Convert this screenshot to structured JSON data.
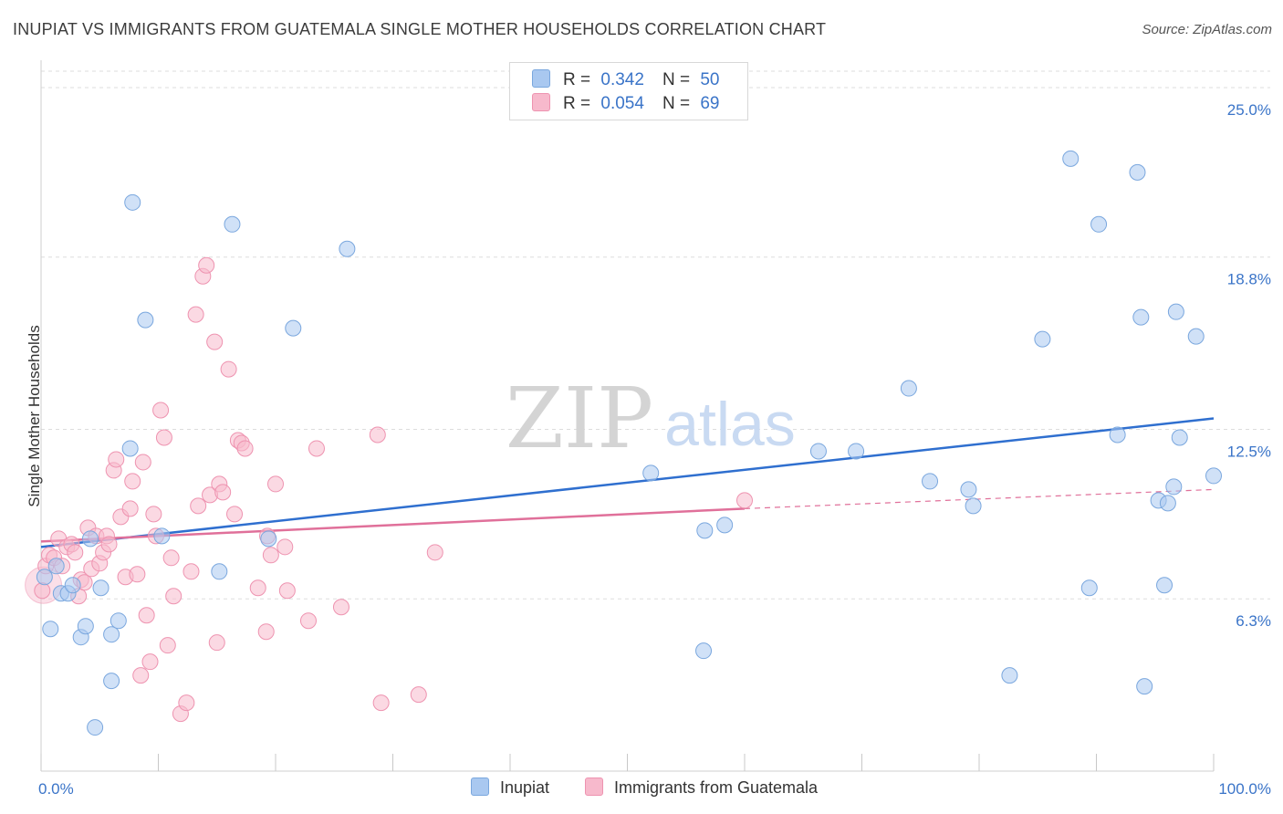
{
  "header": {
    "title": "INUPIAT VS IMMIGRANTS FROM GUATEMALA SINGLE MOTHER HOUSEHOLDS CORRELATION CHART",
    "source": "Source: ZipAtlas.com"
  },
  "watermark": {
    "zip": "ZIP",
    "atlas": "atlas"
  },
  "legend": {
    "rows": [
      {
        "r_label": "R =",
        "r_value": "0.342",
        "n_label": "N =",
        "n_value": "50",
        "color": "#a9c8f0"
      },
      {
        "r_label": "R =",
        "r_value": "0.054",
        "n_label": "N =",
        "n_value": "69",
        "color": "#f7b9cc"
      }
    ]
  },
  "bottom_legend": {
    "series_a": "Inupiat",
    "series_b": "Immigrants from Guatemala"
  },
  "colors": {
    "blue_fill": "#a9c8f0",
    "blue_stroke": "#7aa7de",
    "blue_line": "#2f6fcf",
    "pink_fill": "#f7b9cc",
    "pink_stroke": "#ee93b0",
    "pink_line": "#e0709a",
    "tick_text": "#3a74c8",
    "grid": "#dddddd"
  },
  "chart_data": {
    "type": "scatter",
    "xlabel": "",
    "ylabel": "Single Mother Households",
    "xlim": [
      0,
      100
    ],
    "ylim": [
      0,
      25.6
    ],
    "x_tick_labels": [
      "0.0%",
      "100.0%"
    ],
    "y_ticks": [
      {
        "value": 6.3,
        "label": "6.3%"
      },
      {
        "value": 12.5,
        "label": "12.5%"
      },
      {
        "value": 18.8,
        "label": "18.8%"
      },
      {
        "value": 25.0,
        "label": "25.0%"
      }
    ],
    "grid": true,
    "series": [
      {
        "name": "Inupiat",
        "color": "#a9c8f0",
        "trend": {
          "x0": 0,
          "y0": 8.2,
          "x1": 100,
          "y1": 12.9
        },
        "points": [
          [
            0.3,
            7.1
          ],
          [
            0.8,
            5.2
          ],
          [
            1.3,
            7.5
          ],
          [
            1.7,
            6.5
          ],
          [
            2.3,
            6.5
          ],
          [
            2.7,
            6.8
          ],
          [
            3.4,
            4.9
          ],
          [
            3.8,
            5.3
          ],
          [
            4.2,
            8.5
          ],
          [
            4.6,
            1.6
          ],
          [
            5.1,
            6.7
          ],
          [
            6.0,
            3.3
          ],
          [
            6.0,
            5.0
          ],
          [
            6.6,
            5.5
          ],
          [
            7.6,
            11.8
          ],
          [
            7.8,
            20.8
          ],
          [
            8.9,
            16.5
          ],
          [
            10.3,
            8.6
          ],
          [
            15.2,
            7.3
          ],
          [
            16.3,
            20.0
          ],
          [
            19.4,
            8.5
          ],
          [
            21.5,
            16.2
          ],
          [
            26.1,
            19.1
          ],
          [
            52.0,
            10.9
          ],
          [
            56.5,
            4.4
          ],
          [
            56.6,
            8.8
          ],
          [
            58.3,
            9.0
          ],
          [
            66.3,
            11.7
          ],
          [
            69.5,
            11.7
          ],
          [
            74.0,
            14.0
          ],
          [
            75.8,
            10.6
          ],
          [
            79.1,
            10.3
          ],
          [
            79.5,
            9.7
          ],
          [
            82.6,
            3.5
          ],
          [
            85.4,
            15.8
          ],
          [
            87.8,
            22.4
          ],
          [
            89.4,
            6.7
          ],
          [
            90.2,
            20.0
          ],
          [
            91.8,
            12.3
          ],
          [
            93.5,
            21.9
          ],
          [
            93.8,
            16.6
          ],
          [
            94.1,
            3.1
          ],
          [
            95.3,
            9.9
          ],
          [
            95.8,
            6.8
          ],
          [
            96.1,
            9.8
          ],
          [
            96.6,
            10.4
          ],
          [
            96.8,
            16.8
          ],
          [
            97.1,
            12.2
          ],
          [
            98.5,
            15.9
          ],
          [
            100.0,
            10.8
          ]
        ]
      },
      {
        "name": "Immigrants from Guatemala",
        "color": "#f7b9cc",
        "trend": {
          "x0": 0,
          "y0": 8.4,
          "x1": 60,
          "y1": 9.6,
          "dash_x1": 100,
          "dash_y1": 10.3
        },
        "points": [
          [
            0.1,
            6.6
          ],
          [
            0.4,
            7.5
          ],
          [
            0.7,
            7.9
          ],
          [
            1.1,
            7.8
          ],
          [
            1.5,
            8.5
          ],
          [
            1.8,
            7.5
          ],
          [
            2.2,
            8.2
          ],
          [
            2.6,
            8.3
          ],
          [
            2.9,
            8.0
          ],
          [
            3.2,
            6.4
          ],
          [
            3.4,
            7.0
          ],
          [
            3.7,
            6.9
          ],
          [
            4.0,
            8.9
          ],
          [
            4.3,
            7.4
          ],
          [
            4.7,
            8.6
          ],
          [
            5.0,
            7.6
          ],
          [
            5.3,
            8.0
          ],
          [
            5.6,
            8.6
          ],
          [
            5.8,
            8.3
          ],
          [
            6.2,
            11.0
          ],
          [
            6.4,
            11.4
          ],
          [
            6.8,
            9.3
          ],
          [
            7.2,
            7.1
          ],
          [
            7.6,
            9.6
          ],
          [
            7.8,
            10.6
          ],
          [
            8.2,
            7.2
          ],
          [
            8.5,
            3.5
          ],
          [
            8.7,
            11.3
          ],
          [
            9.0,
            5.7
          ],
          [
            9.3,
            4.0
          ],
          [
            9.6,
            9.4
          ],
          [
            9.8,
            8.6
          ],
          [
            10.2,
            13.2
          ],
          [
            10.5,
            12.2
          ],
          [
            10.8,
            4.6
          ],
          [
            11.1,
            7.8
          ],
          [
            11.3,
            6.4
          ],
          [
            11.9,
            2.1
          ],
          [
            12.4,
            2.5
          ],
          [
            12.8,
            7.3
          ],
          [
            13.2,
            16.7
          ],
          [
            13.4,
            9.7
          ],
          [
            13.8,
            18.1
          ],
          [
            14.1,
            18.5
          ],
          [
            14.4,
            10.1
          ],
          [
            14.8,
            15.7
          ],
          [
            15.0,
            4.7
          ],
          [
            15.2,
            10.5
          ],
          [
            15.5,
            10.2
          ],
          [
            16.0,
            14.7
          ],
          [
            16.5,
            9.4
          ],
          [
            16.8,
            12.1
          ],
          [
            17.1,
            12.0
          ],
          [
            17.4,
            11.8
          ],
          [
            18.5,
            6.7
          ],
          [
            19.2,
            5.1
          ],
          [
            19.3,
            8.6
          ],
          [
            19.6,
            7.9
          ],
          [
            20.0,
            10.5
          ],
          [
            20.8,
            8.2
          ],
          [
            21.0,
            6.6
          ],
          [
            22.8,
            5.5
          ],
          [
            23.5,
            11.8
          ],
          [
            25.6,
            6.0
          ],
          [
            28.7,
            12.3
          ],
          [
            29.0,
            2.5
          ],
          [
            32.2,
            2.8
          ],
          [
            33.6,
            8.0
          ],
          [
            60.0,
            9.9
          ]
        ]
      }
    ]
  }
}
